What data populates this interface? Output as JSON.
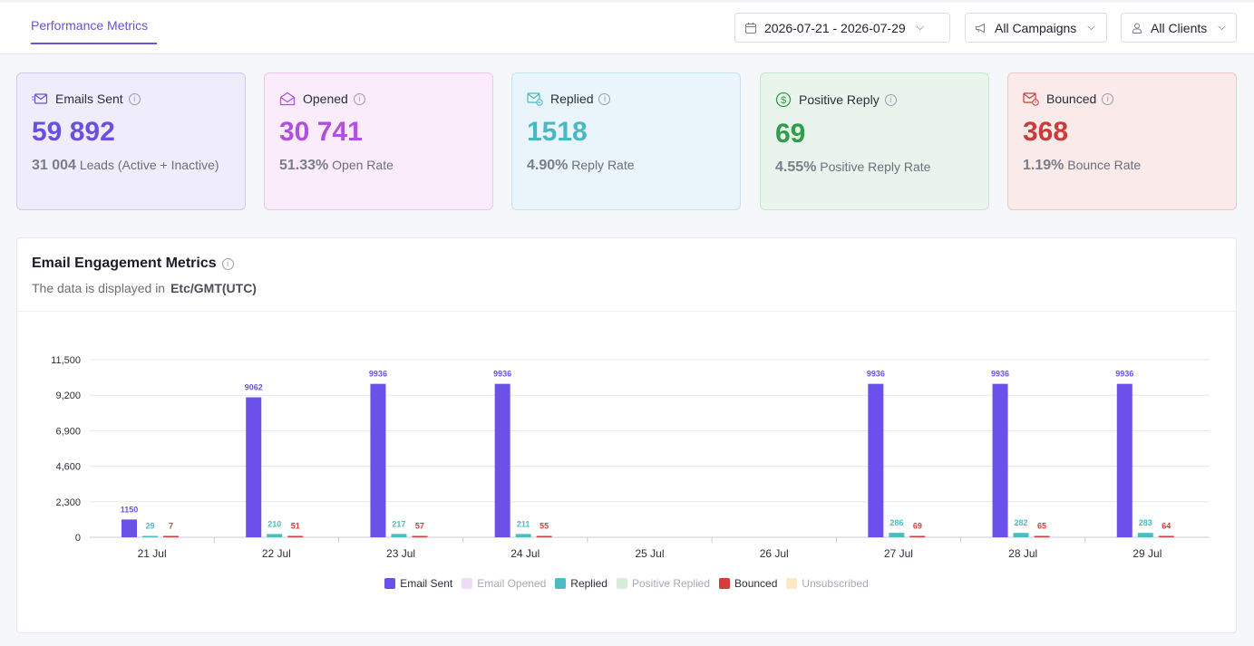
{
  "header": {
    "tab_label": "Performance Metrics",
    "date_range": "2026-07-21 - 2026-07-29",
    "campaigns": "All Campaigns",
    "clients": "All Clients"
  },
  "cards": {
    "sent": {
      "label": "Emails Sent",
      "value": "59 892",
      "sub_value": "31 004",
      "sub_label": "Leads (Active + Inactive)",
      "color": "#6b4fe0"
    },
    "opened": {
      "label": "Opened",
      "value": "30 741",
      "sub_value": "51.33%",
      "sub_label": "Open Rate",
      "color": "#b24ee0"
    },
    "replied": {
      "label": "Replied",
      "value": "1518",
      "sub_value": "4.90%",
      "sub_label": "Reply Rate",
      "color": "#4ab8c2"
    },
    "positive": {
      "label": "Positive Reply",
      "value": "69",
      "sub_value": "4.55%",
      "sub_label": "Positive Reply Rate",
      "color": "#2f9e4a"
    },
    "bounced": {
      "label": "Bounced",
      "value": "368",
      "sub_value": "1.19%",
      "sub_label": "Bounce Rate",
      "color": "#cc3b3b"
    }
  },
  "panel": {
    "title": "Email Engagement Metrics",
    "subtitle": "The data is displayed in",
    "timezone": "Etc/GMT(UTC)"
  },
  "chart_data": {
    "type": "bar",
    "categories": [
      "21 Jul",
      "22 Jul",
      "23 Jul",
      "24 Jul",
      "25 Jul",
      "26 Jul",
      "27 Jul",
      "28 Jul",
      "29 Jul"
    ],
    "ylim": [
      0,
      11500
    ],
    "yticks": [
      "0",
      "2,300",
      "4,600",
      "6,900",
      "9,200",
      "11,500"
    ],
    "series": [
      {
        "name": "Email Sent",
        "color": "#6c50ea",
        "values": [
          1150,
          9062,
          9936,
          9936,
          0,
          0,
          9936,
          9936,
          9936
        ],
        "labels": [
          "1150",
          "9062",
          "9936",
          "9936",
          "",
          "",
          "9936",
          "9936",
          "9936"
        ]
      },
      {
        "name": "Email Opened",
        "color": "#f1dcf7",
        "values": [
          0,
          0,
          0,
          0,
          0,
          0,
          0,
          0,
          0
        ],
        "labels": [
          "",
          "",
          "",
          "",
          "",
          "",
          "",
          "",
          ""
        ]
      },
      {
        "name": "Replied",
        "color": "#4cbcc2",
        "values": [
          29,
          210,
          217,
          211,
          0,
          0,
          286,
          282,
          283
        ],
        "labels": [
          "29",
          "210",
          "217",
          "211",
          "",
          "",
          "286",
          "282",
          "283"
        ]
      },
      {
        "name": "Positive Replied",
        "color": "#d6ecd9",
        "values": [
          0,
          0,
          0,
          0,
          0,
          0,
          0,
          0,
          0
        ],
        "labels": [
          "",
          "",
          "",
          "",
          "",
          "",
          "",
          "",
          ""
        ]
      },
      {
        "name": "Bounced",
        "color": "#d33d3d",
        "values": [
          7,
          51,
          57,
          55,
          0,
          0,
          69,
          65,
          64
        ],
        "labels": [
          "7",
          "51",
          "57",
          "55",
          "",
          "",
          "69",
          "65",
          "64"
        ]
      },
      {
        "name": "Unsubscribed",
        "color": "#fbe9c8",
        "values": [
          0,
          0,
          0,
          0,
          0,
          0,
          0,
          0,
          0
        ],
        "labels": [
          "",
          "",
          "",
          "",
          "",
          "",
          "",
          "",
          ""
        ]
      }
    ],
    "legend_hidden": [
      "Email Opened",
      "Positive Replied",
      "Unsubscribed"
    ],
    "legend_position": "bottom",
    "grid": true
  }
}
